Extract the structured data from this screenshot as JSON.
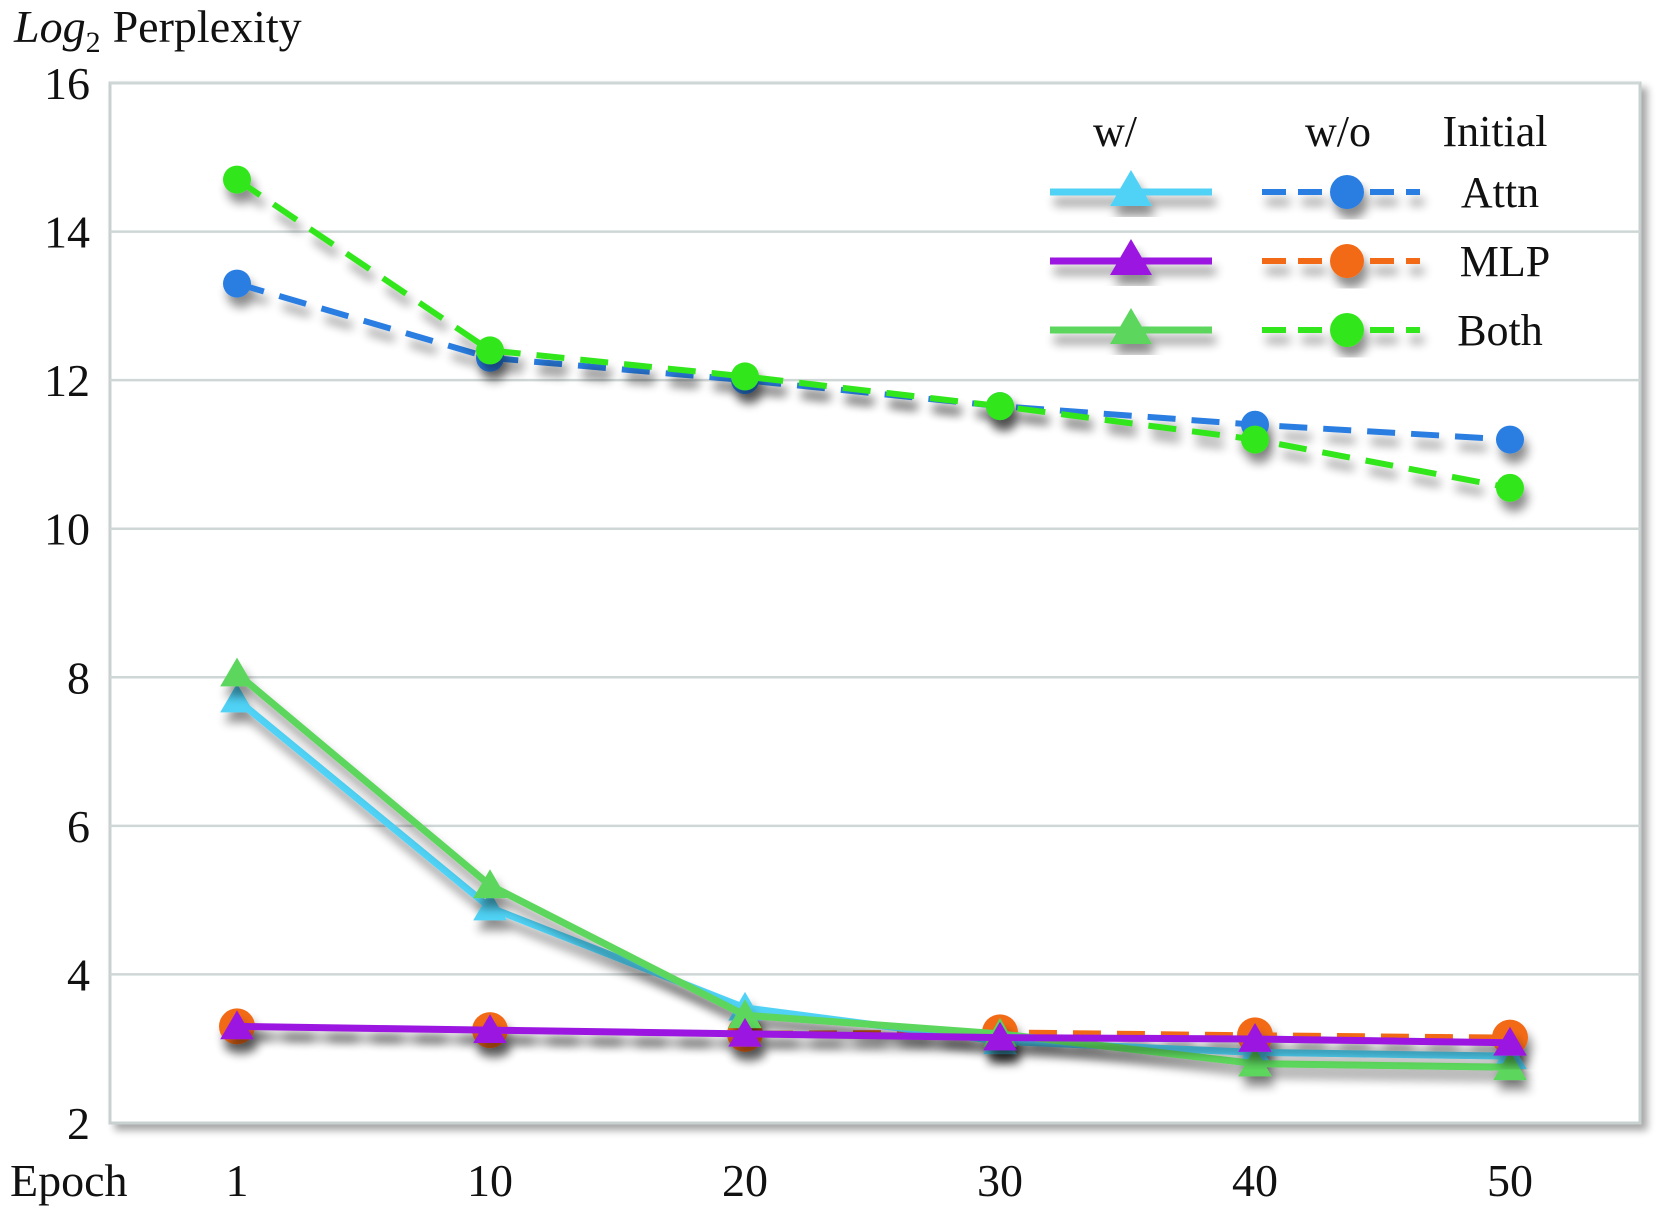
{
  "chart_data": {
    "type": "line",
    "title": "",
    "ylabel_italic": "Log",
    "ylabel_sub": "2",
    "ylabel_rest": "Perplexity",
    "xlabel": "Epoch",
    "x": [
      1,
      10,
      20,
      30,
      40,
      50
    ],
    "x_tick_labels": [
      "1",
      "10",
      "20",
      "30",
      "40",
      "50"
    ],
    "ylim": [
      2,
      16
    ],
    "y_ticks": [
      2,
      4,
      6,
      8,
      10,
      12,
      14,
      16
    ],
    "y_tick_labels": [
      "2",
      "4",
      "6",
      "8",
      "10",
      "12",
      "14",
      "16"
    ],
    "grid": "horizontal",
    "legend": {
      "position": "top-right",
      "col_headers": [
        "w/",
        "w/o",
        "Initial"
      ],
      "rows": [
        "Attn",
        "MLP",
        "Both"
      ]
    },
    "series": [
      {
        "name": "Attn w/o initial",
        "group": "w/o",
        "row": "Attn",
        "color": "#2a7de1",
        "style": "dashed",
        "marker": "circle",
        "values": [
          13.3,
          12.3,
          12.0,
          11.65,
          11.4,
          11.2
        ]
      },
      {
        "name": "Both w/o initial",
        "group": "w/o",
        "row": "Both",
        "color": "#33e61a",
        "style": "dashed",
        "marker": "circle",
        "values": [
          14.7,
          12.4,
          12.05,
          11.65,
          11.2,
          10.55
        ]
      },
      {
        "name": "MLP w/o initial",
        "group": "w/o",
        "row": "MLP",
        "color": "#f26a14",
        "style": "dashed",
        "marker": "circle",
        "values": [
          3.3,
          3.25,
          3.2,
          3.22,
          3.18,
          3.15
        ]
      },
      {
        "name": "Attn w/ initial",
        "group": "w/",
        "row": "Attn",
        "color": "#4fd2f5",
        "style": "solid",
        "marker": "triangle",
        "values": [
          7.7,
          4.9,
          3.55,
          3.1,
          2.95,
          2.9
        ]
      },
      {
        "name": "Both w/ initial",
        "group": "w/",
        "row": "Both",
        "color": "#5cd65c",
        "style": "solid",
        "marker": "triangle",
        "values": [
          8.05,
          5.2,
          3.45,
          3.2,
          2.8,
          2.75
        ]
      },
      {
        "name": "MLP w/ initial",
        "group": "w/",
        "row": "MLP",
        "color": "#9b18e0",
        "style": "solid",
        "marker": "triangle",
        "values": [
          3.3,
          3.25,
          3.2,
          3.15,
          3.13,
          3.08
        ]
      }
    ]
  }
}
